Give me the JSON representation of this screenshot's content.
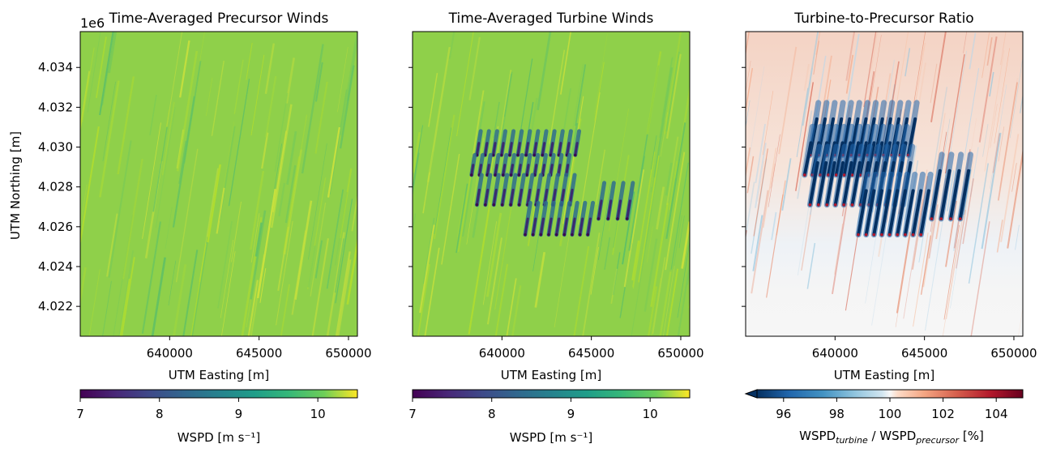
{
  "figure": {
    "offset_label": "1e6",
    "ylabel": "UTM Northing [m]"
  },
  "chart_data": [
    {
      "type": "heatmap",
      "title": "Time-Averaged Precursor Winds",
      "xlabel": "UTM Easting [m]",
      "ylabel": "UTM Northing [m]",
      "xlim": [
        635000,
        650500
      ],
      "ylim": [
        4020500,
        4035800
      ],
      "xticks": [
        640000,
        645000,
        650000
      ],
      "yticks": [
        4.022,
        4.024,
        4.026,
        4.028,
        4.03,
        4.032,
        4.034
      ],
      "y_offset_label": "1e6",
      "colormap": "viridis",
      "field_description_range": [
        9.3,
        10.3
      ],
      "colorbar": {
        "label": "WSPD [m s⁻¹]",
        "ticks": [
          7,
          8,
          9,
          10
        ],
        "range": [
          7,
          10.5
        ],
        "extend": "none"
      }
    },
    {
      "type": "heatmap",
      "title": "Time-Averaged Turbine Winds",
      "xlabel": "UTM Easting [m]",
      "xlim": [
        635000,
        650500
      ],
      "ylim": [
        4020500,
        4035800
      ],
      "xticks": [
        640000,
        645000,
        650000
      ],
      "colormap": "viridis",
      "colorbar": {
        "label": "WSPD [m s⁻¹]",
        "ticks": [
          7,
          8,
          9,
          10
        ],
        "range": [
          7,
          10.5
        ],
        "extend": "none"
      }
    },
    {
      "type": "heatmap",
      "title": "Turbine-to-Precursor Ratio",
      "xlabel": "UTM Easting [m]",
      "xlim": [
        635000,
        650500
      ],
      "ylim": [
        4020500,
        4035800
      ],
      "xticks": [
        640000,
        645000,
        650000
      ],
      "colormap": "RdBu_r",
      "colorbar": {
        "label_main": "WSPD",
        "label_sub1": "turbine",
        "label_mid": " / WSPD",
        "label_sub2": "precursor",
        "label_end": " [%]",
        "ticks": [
          96,
          98,
          100,
          102,
          104
        ],
        "range": [
          95,
          105
        ],
        "extend": "min"
      }
    }
  ],
  "turbine_rows": [
    {
      "y_top": 4030800,
      "y_bottom": 4029600,
      "x_start": 638600,
      "x_end": 644100,
      "count": 13
    },
    {
      "y_top": 4029600,
      "y_bottom": 4028600,
      "x_start": 638300,
      "x_end": 643600,
      "count": 13
    },
    {
      "y_top": 4028600,
      "y_bottom": 4027100,
      "x_start": 638600,
      "x_end": 643800,
      "count": 12
    },
    {
      "y_top": 4028200,
      "y_bottom": 4026400,
      "x_start": 645400,
      "x_end": 647000,
      "count": 4
    },
    {
      "y_top": 4027200,
      "y_bottom": 4025600,
      "x_start": 641300,
      "x_end": 644800,
      "count": 9
    }
  ]
}
